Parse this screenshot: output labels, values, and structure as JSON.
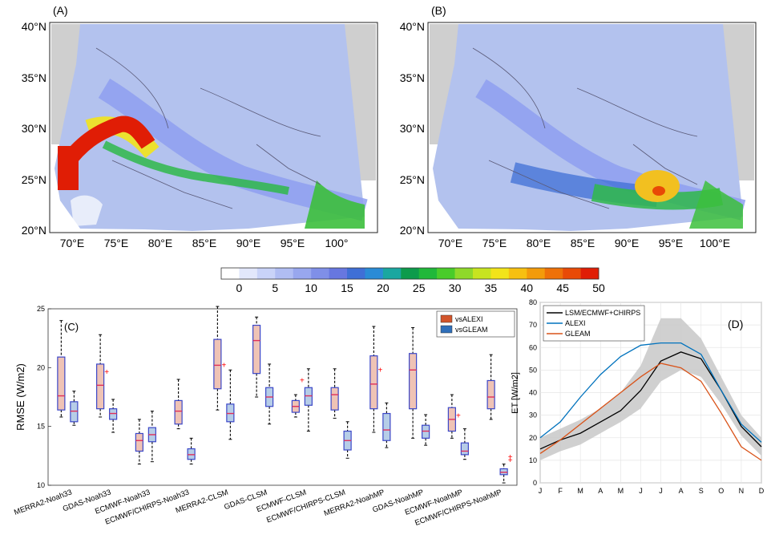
{
  "figure": {
    "colors": {
      "land": "#b3c2ee",
      "land_dark": "#8e9ff0",
      "mask": "#cfcfcf",
      "alexi_box": "#d2542a",
      "gleam_box": "#2f6fba",
      "box_edge": "#3b47c8",
      "median": "#e0305a",
      "outlier": "#ff0000",
      "lsm_line": "#000000",
      "alexi_line": "#0072bd",
      "gleam_line": "#d95319",
      "band": "#c8c8c8"
    }
  },
  "chart_data": [
    {
      "panel": "(A)",
      "type": "heatmap",
      "lat_ticks": [
        "40°N",
        "35°N",
        "30°N",
        "25°N",
        "20°N"
      ],
      "lon_ticks": [
        "70°E",
        "75°E",
        "80°E",
        "85°E",
        "90°E",
        "95°E",
        "100°"
      ]
    },
    {
      "panel": "(B)",
      "type": "heatmap",
      "lat_ticks": [
        "40°N",
        "35°N",
        "30°N",
        "25°N",
        "20°N"
      ],
      "lon_ticks": [
        "70°E",
        "75°E",
        "80°E",
        "85°E",
        "90°E",
        "95°E",
        "100°E"
      ]
    },
    {
      "type": "colorbar",
      "labels": [
        "0",
        "5",
        "10",
        "15",
        "20",
        "25",
        "30",
        "35",
        "40",
        "45",
        "50"
      ],
      "colors": [
        "#ffffff",
        "#e2e7fb",
        "#c9d3f8",
        "#b0bdf3",
        "#98a7ee",
        "#7f8fe8",
        "#6777e0",
        "#3f6fd6",
        "#2a8bd6",
        "#1aa7a0",
        "#0d9b4b",
        "#20b83a",
        "#49cc2a",
        "#8fd92a",
        "#c7e420",
        "#f2e41a",
        "#f7c010",
        "#f39b0a",
        "#ee7108",
        "#e84a06",
        "#e01d05"
      ]
    },
    {
      "panel": "(C)",
      "type": "box",
      "ylabel": "RMSE (W/m2)",
      "ylim": [
        10,
        25
      ],
      "yticks": [
        10,
        15,
        20,
        25
      ],
      "legend": [
        "vsALEXI",
        "vsGLEAM"
      ],
      "categories": [
        "MERRA2-Noah33",
        "GDAS-Noah33",
        "ECMWF-Noah33",
        "ECMWF/CHIRPS-Noah33",
        "MERRA2-CLSM",
        "GDAS-CLSM",
        "ECMWF-CLSM",
        "ECMWF/CHIRPS-CLSM",
        "MERRA2-NoahMP",
        "GDAS-NoahMP",
        "ECMWF-NoahMP",
        "ECMWF/CHIRPS-NoahMP"
      ],
      "series": [
        {
          "name": "vsALEXI",
          "boxes": [
            {
              "min": 15.8,
              "q1": 16.4,
              "median": 17.6,
              "q3": 20.9,
              "max": 24.0,
              "outliers": []
            },
            {
              "min": 15.8,
              "q1": 16.5,
              "median": 18.5,
              "q3": 20.3,
              "max": 22.8,
              "outliers": [
                19.6
              ]
            },
            {
              "min": 11.8,
              "q1": 12.9,
              "median": 13.8,
              "q3": 14.4,
              "max": 15.6,
              "outliers": []
            },
            {
              "min": 14.8,
              "q1": 15.2,
              "median": 16.3,
              "q3": 17.2,
              "max": 19.0,
              "outliers": []
            },
            {
              "min": 16.4,
              "q1": 18.2,
              "median": 20.2,
              "q3": 22.4,
              "max": 25.2,
              "outliers": [
                20.2
              ]
            },
            {
              "min": 17.5,
              "q1": 19.5,
              "median": 22.3,
              "q3": 23.6,
              "max": 24.3,
              "outliers": []
            },
            {
              "min": 15.8,
              "q1": 16.2,
              "median": 16.7,
              "q3": 17.2,
              "max": 17.7,
              "outliers": [
                18.9
              ]
            },
            {
              "min": 15.7,
              "q1": 16.4,
              "median": 17.7,
              "q3": 18.3,
              "max": 19.9,
              "outliers": []
            },
            {
              "min": 14.5,
              "q1": 16.5,
              "median": 18.6,
              "q3": 21.0,
              "max": 23.5,
              "outliers": [
                19.8
              ]
            },
            {
              "min": 14.0,
              "q1": 16.5,
              "median": 19.8,
              "q3": 21.2,
              "max": 23.4,
              "outliers": []
            },
            {
              "min": 14.0,
              "q1": 14.6,
              "median": 15.6,
              "q3": 16.6,
              "max": 17.7,
              "outliers": [
                15.9
              ]
            },
            {
              "min": 15.6,
              "q1": 16.5,
              "median": 17.5,
              "q3": 18.9,
              "max": 21.1,
              "outliers": []
            }
          ]
        },
        {
          "name": "vsGLEAM",
          "boxes": [
            {
              "min": 15.1,
              "q1": 15.4,
              "median": 16.3,
              "q3": 17.1,
              "max": 18.0,
              "outliers": []
            },
            {
              "min": 14.5,
              "q1": 15.6,
              "median": 16.1,
              "q3": 16.5,
              "max": 17.3,
              "outliers": []
            },
            {
              "min": 12.0,
              "q1": 13.7,
              "median": 14.3,
              "q3": 14.9,
              "max": 16.3,
              "outliers": []
            },
            {
              "min": 11.8,
              "q1": 12.2,
              "median": 12.6,
              "q3": 13.1,
              "max": 14.0,
              "outliers": []
            },
            {
              "min": 13.9,
              "q1": 15.4,
              "median": 16.1,
              "q3": 16.9,
              "max": 19.8,
              "outliers": []
            },
            {
              "min": 15.2,
              "q1": 16.7,
              "median": 17.5,
              "q3": 18.3,
              "max": 20.3,
              "outliers": []
            },
            {
              "min": 14.6,
              "q1": 16.8,
              "median": 17.6,
              "q3": 18.3,
              "max": 19.9,
              "outliers": []
            },
            {
              "min": 12.3,
              "q1": 13.0,
              "median": 13.8,
              "q3": 14.6,
              "max": 15.4,
              "outliers": []
            },
            {
              "min": 13.2,
              "q1": 13.8,
              "median": 14.7,
              "q3": 16.1,
              "max": 17.0,
              "outliers": []
            },
            {
              "min": 13.4,
              "q1": 14.0,
              "median": 14.6,
              "q3": 15.1,
              "max": 16.0,
              "outliers": []
            },
            {
              "min": 12.2,
              "q1": 12.6,
              "median": 12.9,
              "q3": 13.6,
              "max": 14.8,
              "outliers": []
            },
            {
              "min": 10.2,
              "q1": 10.9,
              "median": 11.1,
              "q3": 11.4,
              "max": 11.8,
              "outliers": [
                12.1,
                12.4
              ]
            }
          ]
        }
      ]
    },
    {
      "panel": "(D)",
      "type": "line",
      "ylabel": "ET [W/m2]",
      "ylim": [
        0,
        80
      ],
      "yticks": [
        0,
        10,
        20,
        30,
        40,
        50,
        60,
        70,
        80
      ],
      "categories": [
        "J",
        "F",
        "M",
        "A",
        "M",
        "J",
        "J",
        "A",
        "S",
        "O",
        "N",
        "D"
      ],
      "series": [
        {
          "name": "LSM/ECMWF+CHIRPS",
          "values": [
            15,
            19,
            22,
            27,
            32,
            41,
            54,
            58,
            55,
            41,
            25,
            16
          ]
        },
        {
          "name": "ALEXI",
          "values": [
            20,
            27,
            38,
            48,
            56,
            61,
            62,
            62,
            57,
            41,
            26,
            18
          ]
        },
        {
          "name": "GLEAM",
          "values": [
            13,
            19,
            26,
            33,
            40,
            47,
            53,
            51,
            45,
            31,
            16,
            10
          ]
        }
      ],
      "band": {
        "lower": [
          10,
          14,
          17,
          22,
          27,
          33,
          45,
          50,
          47,
          35,
          21,
          12
        ],
        "upper": [
          20,
          24,
          28,
          33,
          40,
          52,
          73,
          73,
          64,
          47,
          30,
          20
        ]
      }
    }
  ]
}
